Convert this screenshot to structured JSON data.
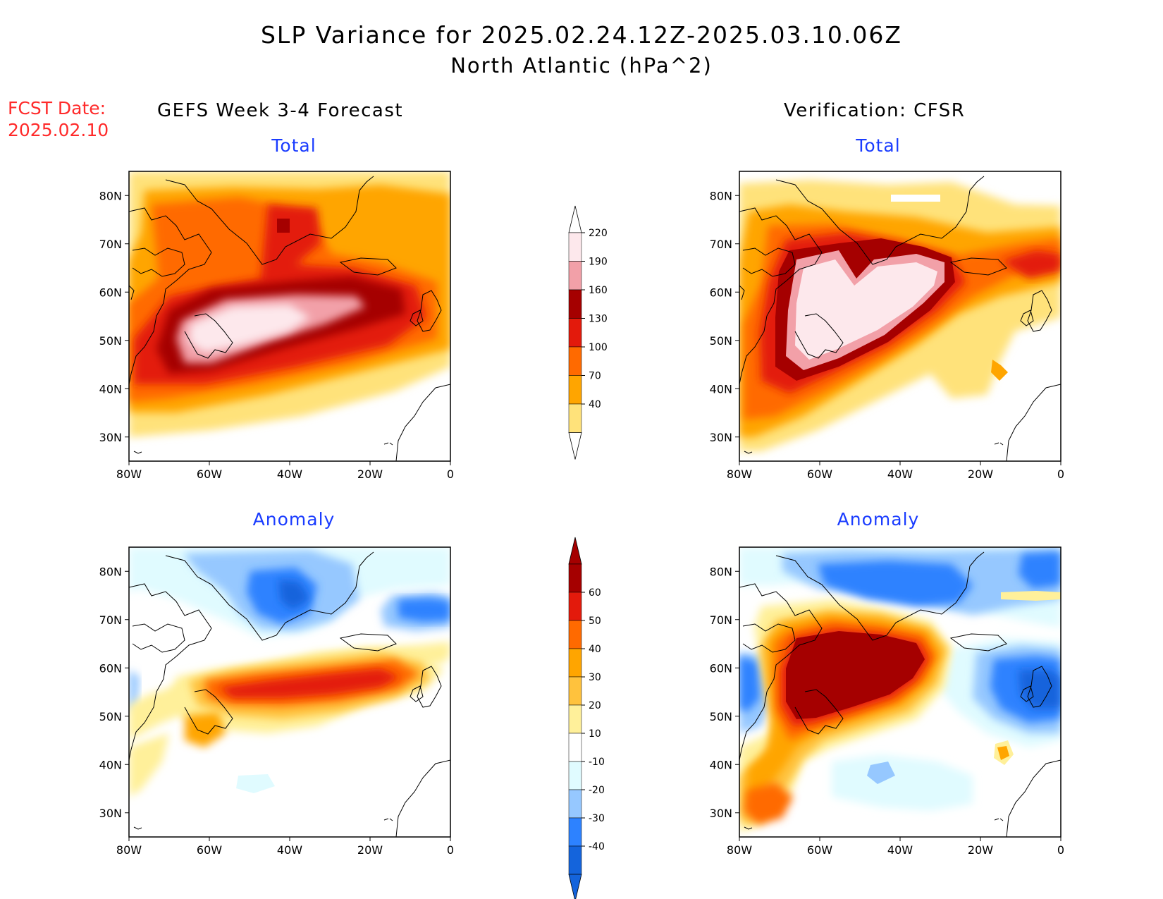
{
  "title": {
    "line1": "SLP Variance for 2025.02.24.12Z-2025.03.10.06Z",
    "line2": "North Atlantic (hPa^2)"
  },
  "fcst_date": {
    "label": "FCST Date:",
    "value": "2025.02.10"
  },
  "columns": {
    "left_title": "GEFS Week 3-4 Forecast",
    "right_title": "Verification: CFSR"
  },
  "panels": {
    "total_label": "Total",
    "anomaly_label": "Anomaly"
  },
  "axes": {
    "lat_labels": [
      "80N",
      "70N",
      "60N",
      "50N",
      "40N",
      "30N"
    ],
    "lat_values": [
      80,
      70,
      60,
      50,
      40,
      30
    ],
    "lon_labels": [
      "80W",
      "60W",
      "40W",
      "20W",
      "0"
    ],
    "lon_values": [
      -80,
      -60,
      -40,
      -20,
      0
    ],
    "lat_range": [
      25,
      85
    ],
    "lon_range": [
      -80,
      0
    ]
  },
  "colorbars": {
    "total": {
      "labels": [
        "40",
        "70",
        "100",
        "130",
        "160",
        "190",
        "220"
      ],
      "colors": [
        "#ffe27a",
        "#ffa500",
        "#ff6a00",
        "#e31a0c",
        "#a50000",
        "#f2a0a8",
        "#fde8ec"
      ]
    },
    "anomaly": {
      "labels": [
        "-40",
        "-30",
        "-20",
        "-10",
        "10",
        "20",
        "30",
        "40",
        "50",
        "60"
      ],
      "colors": [
        "#1464dc",
        "#2d82ff",
        "#96c8ff",
        "#e0fbff",
        "#ffffff",
        "#fff09a",
        "#ffc23d",
        "#ffa500",
        "#ff6a00",
        "#e31a0c",
        "#a50000"
      ]
    }
  },
  "colors": {
    "fcst_date": "#ff2a2a",
    "panel_labels": "#1a3cff"
  }
}
